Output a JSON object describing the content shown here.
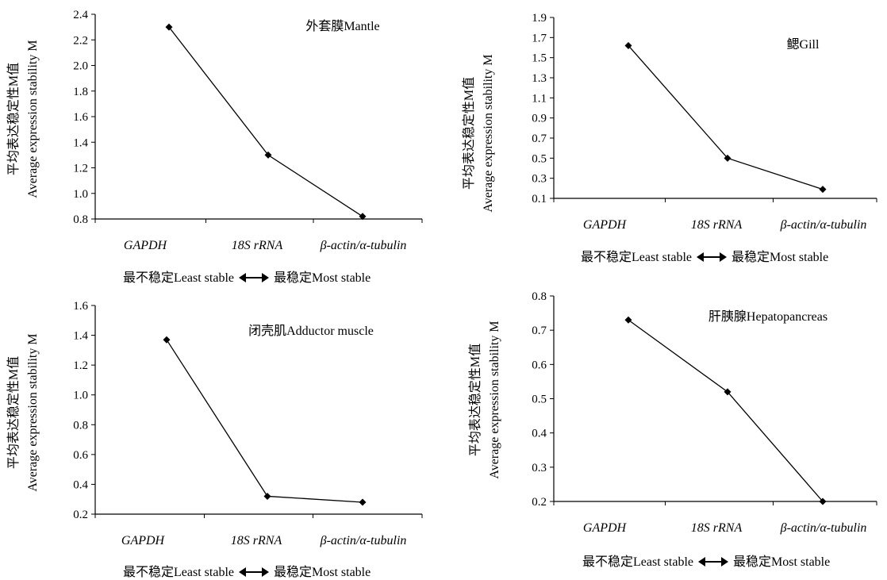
{
  "y_label_cn": "平均表达稳定性M值",
  "y_label_en": "Average expression stability M",
  "x_note": {
    "least": "最不稳定Least stable",
    "most": "最稳定Most stable"
  },
  "chart_data": [
    {
      "type": "line",
      "title": "外套膜Mantle",
      "categories": [
        "GAPDH",
        "18S rRNA",
        "β-actin/α-tubulin"
      ],
      "values": [
        2.3,
        1.3,
        0.82
      ],
      "ylim": [
        0.8,
        2.4
      ],
      "yticks": [
        "0.8",
        "1.0",
        "1.2",
        "1.4",
        "1.6",
        "1.8",
        "2.0",
        "2.2",
        "2.4"
      ]
    },
    {
      "type": "line",
      "title": "鳃Gill",
      "categories": [
        "GAPDH",
        "18S rRNA",
        "β-actin/α-tubulin"
      ],
      "values": [
        1.62,
        0.5,
        0.19
      ],
      "ylim": [
        0.1,
        1.9
      ],
      "yticks": [
        "0.1",
        "0.3",
        "0.5",
        "0.7",
        "0.9",
        "1.1",
        "1.3",
        "1.5",
        "1.7",
        "1.9"
      ]
    },
    {
      "type": "line",
      "title": "闭壳肌Adductor muscle",
      "categories": [
        "GAPDH",
        "18S rRNA",
        "β-actin/α-tubulin"
      ],
      "values": [
        1.37,
        0.32,
        0.28
      ],
      "ylim": [
        0.2,
        1.6
      ],
      "yticks": [
        "0.2",
        "0.4",
        "0.6",
        "0.8",
        "1.0",
        "1.2",
        "1.4",
        "1.6"
      ]
    },
    {
      "type": "line",
      "title": "肝胰腺Hepatopancreas",
      "categories": [
        "GAPDH",
        "18S rRNA",
        "β-actin/α-tubulin"
      ],
      "values": [
        0.73,
        0.52,
        0.2
      ],
      "ylim": [
        0.2,
        0.8
      ],
      "yticks": [
        "0.2",
        "0.3",
        "0.4",
        "0.5",
        "0.6",
        "0.7",
        "0.8"
      ]
    }
  ]
}
